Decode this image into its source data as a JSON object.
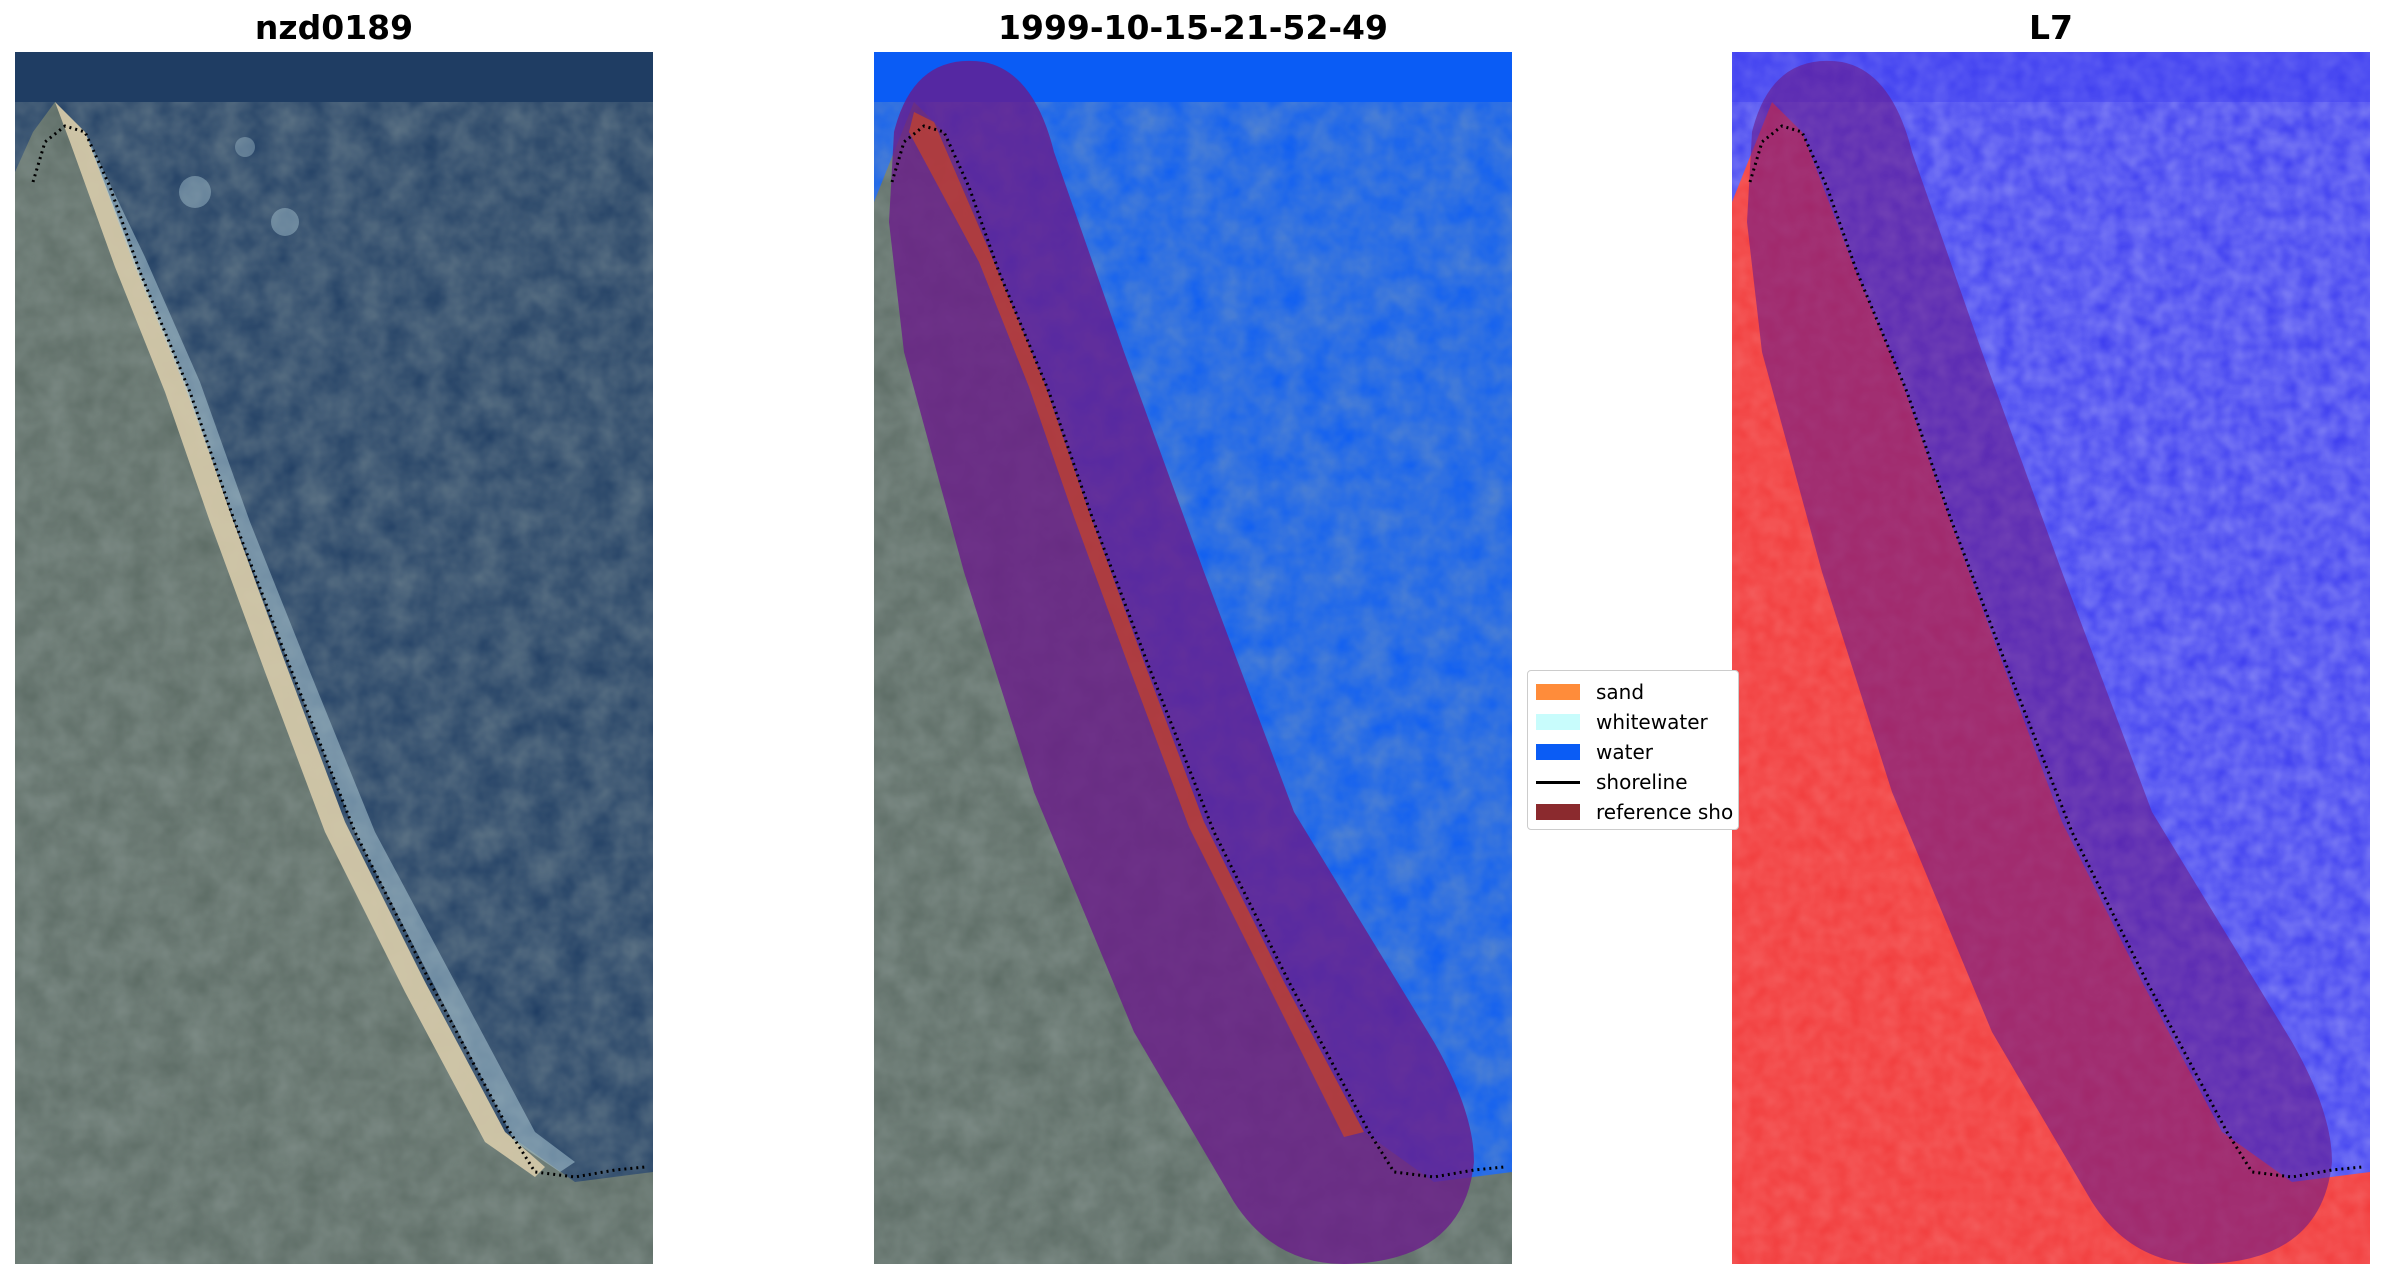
{
  "figure": {
    "panels": [
      {
        "title": "nzd0189",
        "content": "rgb-satellite-image"
      },
      {
        "title": "1999-10-15-21-52-49",
        "content": "classified-image"
      },
      {
        "title": "L7",
        "content": "mndwi-image"
      }
    ],
    "legend": {
      "entries": [
        {
          "label": "sand",
          "color": "#ff8c3a",
          "kind": "patch"
        },
        {
          "label": "whitewater",
          "color": "#c8fcfc",
          "kind": "patch"
        },
        {
          "label": "water",
          "color": "#0a5cf5",
          "kind": "patch"
        },
        {
          "label": "shoreline",
          "color": "#000000",
          "kind": "line"
        },
        {
          "label": "reference sho",
          "color": "#8b2a2e",
          "kind": "patch"
        }
      ]
    },
    "colors": {
      "ocean": "#1f3d63",
      "land": "#5b6a68",
      "beach": "#d8ccae",
      "surf": "#a9c6d3",
      "classified_water": "#0a5cf5",
      "reference_buffer": "#7a1a6a",
      "mndwi_land": "#f23b3b",
      "mndwi_water": "#3b3bf0"
    }
  }
}
